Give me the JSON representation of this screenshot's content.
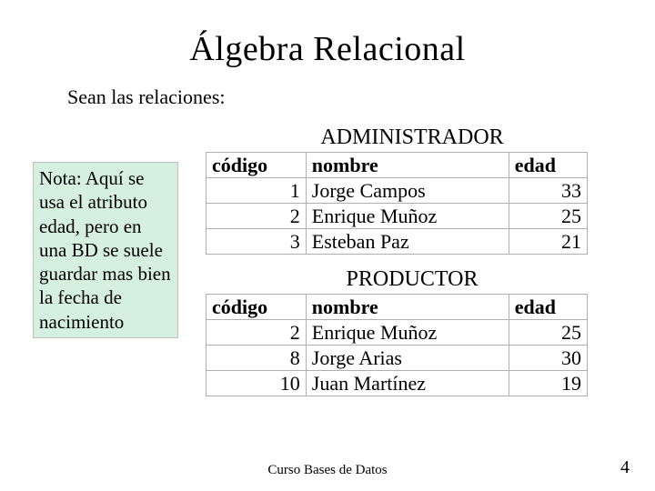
{
  "page": {
    "title": "Álgebra Relacional",
    "intro": "Sean las relaciones:",
    "footer": "Curso Bases de Datos",
    "number": "4"
  },
  "note": {
    "text": "Nota: Aquí se usa el atributo edad, pero en una BD se suele guardar mas bien la fecha de nacimiento",
    "background_color": "#d5f0e0",
    "border_color": "#c0c0c0",
    "fontsize": 21
  },
  "tables": {
    "border_color": "#b0b0b0",
    "title_fontsize": 24,
    "cell_fontsize": 22,
    "admin": {
      "title": "ADMINISTRADOR",
      "columns": [
        "código",
        "nombre",
        "edad"
      ],
      "col_align": [
        "right",
        "left",
        "right"
      ],
      "rows": [
        [
          "1",
          "Jorge Campos",
          "33"
        ],
        [
          "2",
          "Enrique Muñoz",
          "25"
        ],
        [
          "3",
          "Esteban Paz",
          "21"
        ]
      ]
    },
    "productor": {
      "title": "PRODUCTOR",
      "columns": [
        "código",
        "nombre",
        "edad"
      ],
      "col_align": [
        "right",
        "left",
        "right"
      ],
      "rows": [
        [
          "2",
          "Enrique Muñoz",
          "25"
        ],
        [
          "8",
          "Jorge Arias",
          "30"
        ],
        [
          "10",
          "Juan Martínez",
          "19"
        ]
      ]
    }
  },
  "colors": {
    "background": "#ffffff",
    "text": "#000000"
  },
  "typography": {
    "title_fontsize": 38,
    "intro_fontsize": 22,
    "footer_fontsize": 15,
    "pagenum_fontsize": 20,
    "font_family": "Times New Roman"
  }
}
